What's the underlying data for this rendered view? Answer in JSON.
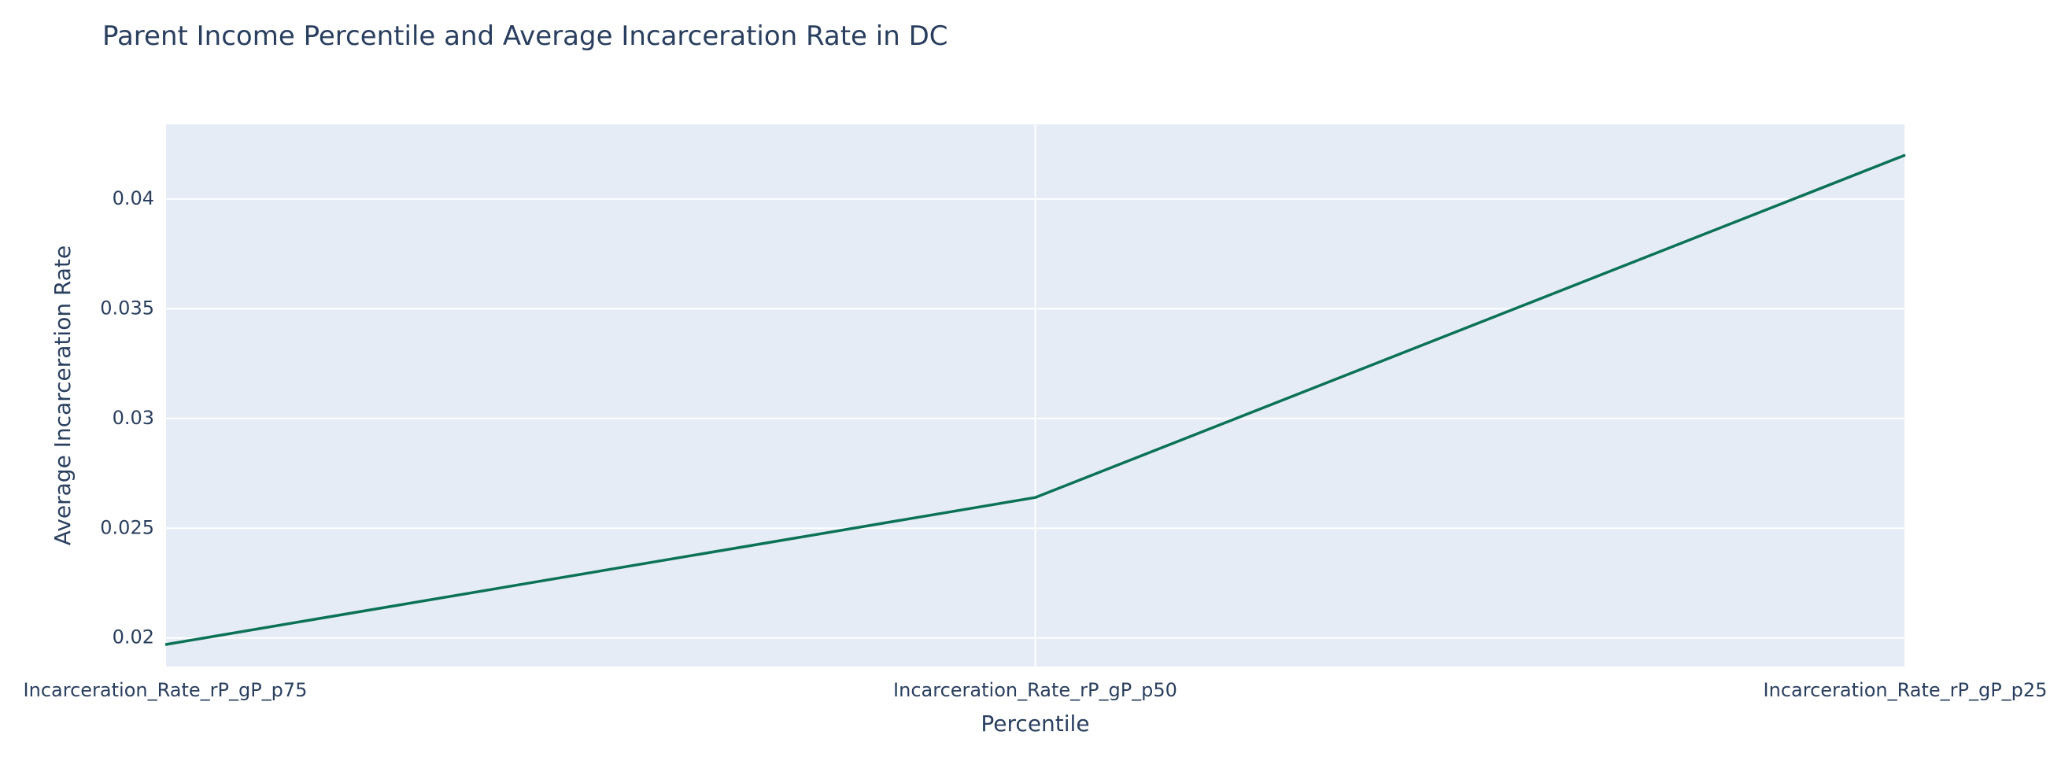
{
  "chart_data": {
    "type": "line",
    "title": "Parent Income Percentile and Average Incarceration Rate in DC",
    "xlabel": "Percentile",
    "ylabel": "Average Incarceration Rate",
    "categories": [
      "Incarceration_Rate_rP_gP_p75",
      "Incarceration_Rate_rP_gP_p50",
      "Incarceration_Rate_rP_gP_p25"
    ],
    "series": [
      {
        "values": [
          0.0197,
          0.0264,
          0.042
        ],
        "color": "#0b7256"
      }
    ],
    "ylim": [
      0.0187,
      0.0434
    ],
    "yticks": [
      0.02,
      0.025,
      0.03,
      0.035,
      0.04
    ],
    "ytick_labels": [
      "0.02",
      "0.025",
      "0.03",
      "0.035",
      "0.04"
    ],
    "grid": true,
    "legend": "none",
    "plot_background": "#e5ecf6",
    "grid_color": "#ffffff"
  }
}
